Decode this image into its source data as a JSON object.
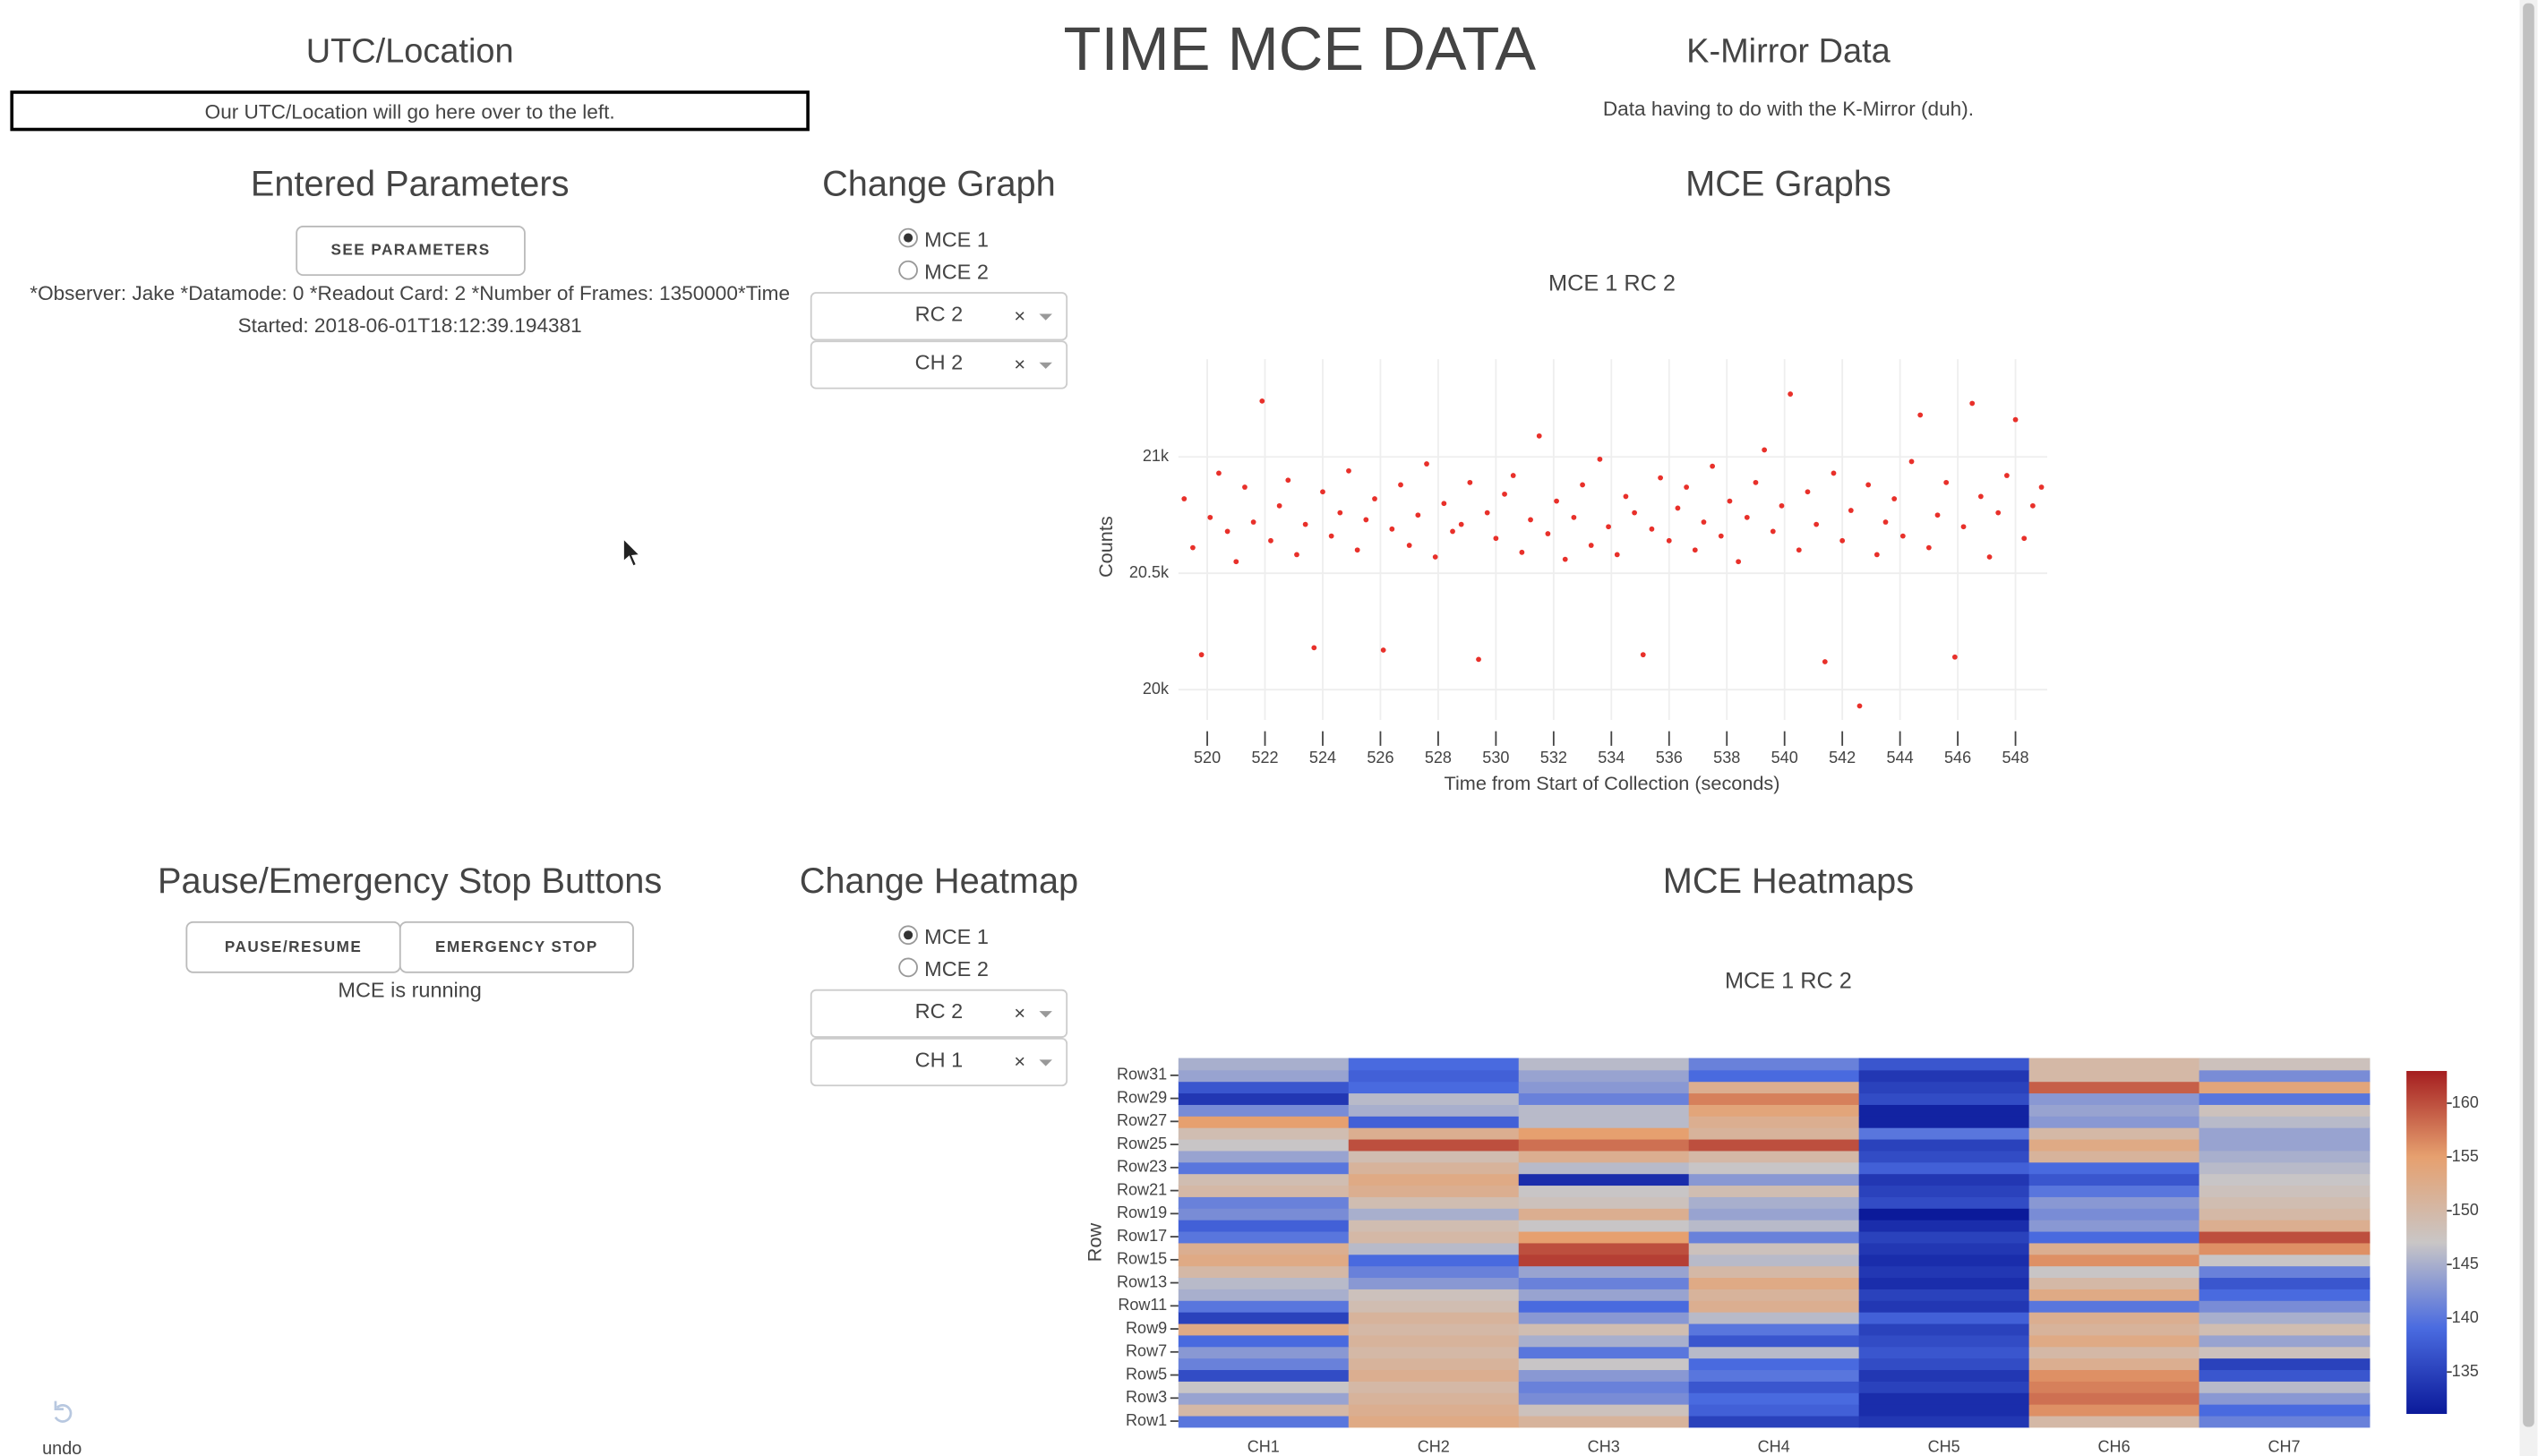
{
  "header": {
    "title": "TIME MCE DATA"
  },
  "utc": {
    "title": "UTC/Location",
    "text": "Our UTC/Location will go here over to the left."
  },
  "kmirror": {
    "title": "K-Mirror Data",
    "text": "Data having to do with the K-Mirror (duh)."
  },
  "parameters": {
    "title": "Entered Parameters",
    "button": "SEE PARAMETERS",
    "lines": [
      "*Observer: Jake *Datamode: 0 *Readout Card: 2 *Number of Frames: 1350000*Time",
      "Started: 2018-06-01T18:12:39.194381"
    ]
  },
  "change_graph": {
    "title": "Change Graph",
    "options": [
      "MCE 1",
      "MCE 2"
    ],
    "selected": 0,
    "dropdowns": [
      "RC 2",
      "CH 2"
    ]
  },
  "graphs_title": "MCE Graphs",
  "controls": {
    "title": "Pause/Emergency Stop Buttons",
    "buttons": [
      "PAUSE/RESUME",
      "EMERGENCY STOP"
    ],
    "status": "MCE is running"
  },
  "change_heatmap": {
    "title": "Change Heatmap",
    "options": [
      "MCE 1",
      "MCE 2"
    ],
    "selected": 0,
    "dropdowns": [
      "RC 2",
      "CH 1"
    ]
  },
  "heatmaps_title": "MCE Heatmaps",
  "undo": "undo",
  "chart_data": [
    {
      "type": "scatter",
      "title": "MCE 1 RC 2",
      "x_label": "Time from Start of Collection (seconds)",
      "y_label": "Counts",
      "color": "#e8302a",
      "x": [
        519.2,
        519.5,
        519.8,
        520.1,
        520.4,
        520.7,
        521.0,
        521.3,
        521.6,
        521.9,
        522.2,
        522.5,
        522.8,
        523.1,
        523.4,
        523.7,
        524.0,
        524.3,
        524.6,
        524.9,
        525.2,
        525.5,
        525.8,
        526.1,
        526.4,
        526.7,
        527.0,
        527.3,
        527.6,
        527.9,
        528.2,
        528.5,
        528.8,
        529.1,
        529.4,
        529.7,
        530.0,
        530.3,
        530.6,
        530.9,
        531.2,
        531.5,
        531.8,
        532.1,
        532.4,
        532.7,
        533.0,
        533.3,
        533.6,
        533.9,
        534.2,
        534.5,
        534.8,
        535.1,
        535.4,
        535.7,
        536.0,
        536.3,
        536.6,
        536.9,
        537.2,
        537.5,
        537.8,
        538.1,
        538.4,
        538.7,
        539.0,
        539.3,
        539.6,
        539.9,
        540.2,
        540.5,
        540.8,
        541.1,
        541.4,
        541.7,
        542.0,
        542.3,
        542.6,
        542.9,
        543.2,
        543.5,
        543.8,
        544.1,
        544.4,
        544.7,
        545.0,
        545.3,
        545.6,
        545.9,
        546.2,
        546.5,
        546.8,
        547.1,
        547.4,
        547.7,
        548.0,
        548.3,
        548.6,
        548.9
      ],
      "y": [
        20820,
        20610,
        20150,
        20740,
        20930,
        20680,
        20550,
        20870,
        20720,
        21240,
        20640,
        20790,
        20900,
        20580,
        20710,
        20180,
        20850,
        20660,
        20760,
        20940,
        20600,
        20730,
        20820,
        20170,
        20690,
        20880,
        20620,
        20750,
        20970,
        20570,
        20800,
        20680,
        20710,
        20890,
        20130,
        20760,
        20650,
        20840,
        20920,
        20590,
        20730,
        21090,
        20670,
        20810,
        20560,
        20740,
        20880,
        20620,
        20990,
        20700,
        20580,
        20830,
        20760,
        20150,
        20690,
        20910,
        20640,
        20780,
        20870,
        20600,
        20720,
        20960,
        20660,
        20810,
        20550,
        20740,
        20890,
        21030,
        20680,
        20790,
        21270,
        20600,
        20850,
        20710,
        20120,
        20930,
        20640,
        20770,
        19930,
        20880,
        20580,
        20720,
        20820,
        20660,
        20980,
        21180,
        20610,
        20750,
        20890,
        20140,
        20700,
        21230,
        20830,
        20570,
        20760,
        20920,
        21160,
        20650,
        20790,
        20870
      ],
      "xlim": [
        519,
        549.1
      ],
      "xticks": [
        520,
        522,
        524,
        526,
        528,
        530,
        532,
        534,
        536,
        538,
        540,
        542,
        544,
        546,
        548
      ],
      "ylim": [
        19870,
        21420
      ],
      "yticks": [
        {
          "value": 20000,
          "label": "20k"
        },
        {
          "value": 20500,
          "label": "20.5k"
        },
        {
          "value": 21000,
          "label": "21k"
        }
      ],
      "grid": true
    },
    {
      "type": "heatmap",
      "title": "MCE 1 RC 2",
      "y_label": "Row",
      "x": [
        "CH1",
        "CH2",
        "CH3",
        "CH4",
        "CH5",
        "CH6",
        "CH7"
      ],
      "y": [
        "Row1",
        null,
        "Row3",
        null,
        "Row5",
        null,
        "Row7",
        null,
        "Row9",
        null,
        "Row11",
        null,
        "Row13",
        null,
        "Row15",
        null,
        "Row17",
        null,
        "Row19",
        null,
        "Row21",
        null,
        "Row23",
        null,
        "Row25",
        null,
        "Row27",
        null,
        "Row29",
        null,
        "Row31",
        null
      ],
      "z": [
        [
          140,
          153,
          151,
          135,
          134,
          150,
          141
        ],
        [
          150,
          152,
          148,
          138,
          133,
          156,
          139
        ],
        [
          144,
          151,
          142,
          139,
          133,
          158,
          143
        ],
        [
          147,
          150,
          141,
          137,
          135,
          157,
          146
        ],
        [
          136,
          152,
          143,
          140,
          134,
          156,
          137
        ],
        [
          141,
          151,
          147,
          139,
          136,
          152,
          135
        ],
        [
          143,
          150,
          140,
          146,
          137,
          150,
          148
        ],
        [
          139,
          151,
          145,
          137,
          136,
          153,
          144
        ],
        [
          153,
          150,
          149,
          140,
          135,
          151,
          149
        ],
        [
          135,
          151,
          143,
          146,
          138,
          152,
          145
        ],
        [
          140,
          149,
          139,
          152,
          134,
          140,
          142
        ],
        [
          145,
          148,
          144,
          151,
          135,
          153,
          139
        ],
        [
          146,
          143,
          141,
          153,
          133,
          150,
          137
        ],
        [
          150,
          141,
          144,
          150,
          134,
          147,
          141
        ],
        [
          153,
          139,
          161,
          146,
          133,
          156,
          147
        ],
        [
          152,
          146,
          160,
          148,
          134,
          152,
          156
        ],
        [
          140,
          150,
          155,
          141,
          135,
          139,
          160
        ],
        [
          138,
          149,
          147,
          146,
          133,
          143,
          152
        ],
        [
          142,
          145,
          152,
          144,
          131,
          142,
          150
        ],
        [
          141,
          149,
          148,
          145,
          136,
          143,
          149
        ],
        [
          150,
          152,
          147,
          149,
          135,
          140,
          148
        ],
        [
          149,
          153,
          133,
          143,
          134,
          137,
          147
        ],
        [
          140,
          151,
          146,
          147,
          138,
          139,
          146
        ],
        [
          144,
          149,
          152,
          150,
          136,
          151,
          145
        ],
        [
          147,
          160,
          158,
          160,
          135,
          153,
          144
        ],
        [
          149,
          152,
          155,
          151,
          140,
          150,
          144
        ],
        [
          155,
          138,
          146,
          152,
          132,
          143,
          146
        ],
        [
          142,
          145,
          146,
          154,
          132,
          144,
          148
        ],
        [
          134,
          146,
          141,
          157,
          136,
          143,
          140
        ],
        [
          137,
          139,
          143,
          152,
          135,
          159,
          154
        ],
        [
          144,
          138,
          144,
          139,
          134,
          150,
          142
        ],
        [
          145,
          139,
          146,
          141,
          137,
          150,
          148
        ]
      ],
      "zlim": [
        131.1,
        163
      ],
      "zticks": [
        135,
        140,
        145,
        150,
        155,
        160
      ],
      "colorscale": [
        "#0b1a9a",
        "#4a6be0",
        "#c9c6c6",
        "#e6a06f",
        "#a51e20"
      ]
    }
  ]
}
